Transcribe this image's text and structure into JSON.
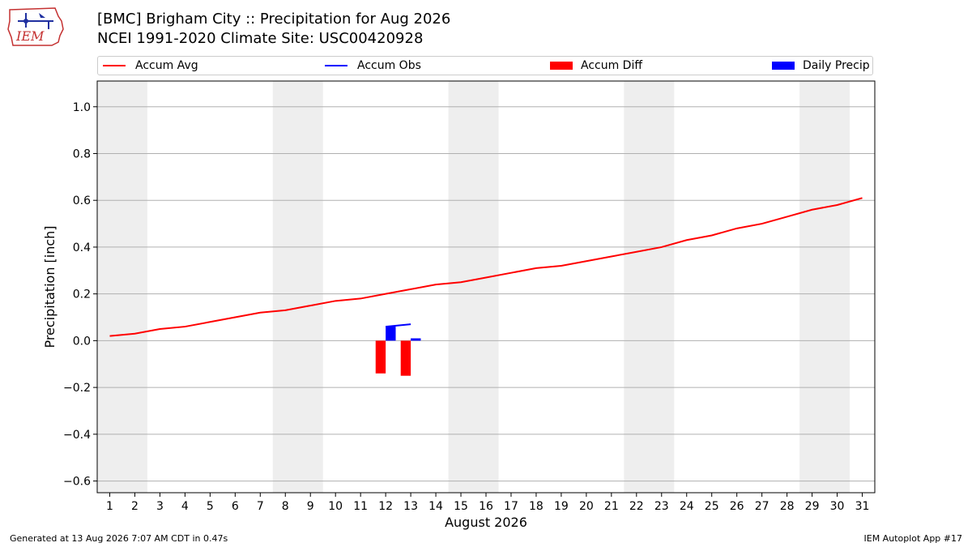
{
  "header": {
    "logo_text": "IEM",
    "title_line1": "[BMC] Brigham City :: Precipitation for Aug 2026",
    "title_line2": "NCEI 1991-2020 Climate Site: USC00420928"
  },
  "legend": {
    "placement": "top",
    "items": [
      {
        "label": "Accum Avg",
        "kind": "line",
        "color": "#ff0000"
      },
      {
        "label": "Accum Obs",
        "kind": "line",
        "color": "#0000ff"
      },
      {
        "label": "Accum Diff",
        "kind": "patch",
        "color": "#ff0000"
      },
      {
        "label": "Daily Precip",
        "kind": "patch",
        "color": "#0000ff"
      }
    ]
  },
  "footer": {
    "left": "Generated at 13 Aug 2026 7:07 AM CDT in 0.47s",
    "right": "IEM Autoplot App #17"
  },
  "chart_data": {
    "type": "bar",
    "title": "[BMC] Brigham City :: Precipitation for Aug 2026",
    "subtitle": "NCEI 1991-2020 Climate Site: USC00420928",
    "xlabel": "August 2026",
    "ylabel": "Precipitation [inch]",
    "xlim": [
      0.5,
      31.5
    ],
    "ylim": [
      -0.65,
      1.11
    ],
    "x_ticks": [
      1,
      2,
      3,
      4,
      5,
      6,
      7,
      8,
      9,
      10,
      11,
      12,
      13,
      14,
      15,
      16,
      17,
      18,
      19,
      20,
      21,
      22,
      23,
      24,
      25,
      26,
      27,
      28,
      29,
      30,
      31
    ],
    "y_ticks": [
      -0.6,
      -0.4,
      -0.2,
      0.0,
      0.2,
      0.4,
      0.6,
      0.8,
      1.0
    ],
    "grid": "horizontal",
    "weekend_bands": [
      [
        1,
        2
      ],
      [
        8,
        9
      ],
      [
        15,
        16
      ],
      [
        22,
        23
      ],
      [
        29,
        30
      ]
    ],
    "series": [
      {
        "name": "Accum Avg",
        "type": "line",
        "color": "#ff0000",
        "x": [
          1,
          2,
          3,
          4,
          5,
          6,
          7,
          8,
          9,
          10,
          11,
          12,
          13,
          14,
          15,
          16,
          17,
          18,
          19,
          20,
          21,
          22,
          23,
          24,
          25,
          26,
          27,
          28,
          29,
          30,
          31
        ],
        "values": [
          0.02,
          0.03,
          0.05,
          0.06,
          0.08,
          0.1,
          0.12,
          0.13,
          0.15,
          0.17,
          0.18,
          0.2,
          0.22,
          0.24,
          0.25,
          0.27,
          0.29,
          0.31,
          0.32,
          0.34,
          0.36,
          0.38,
          0.4,
          0.43,
          0.45,
          0.48,
          0.5,
          0.53,
          0.56,
          0.58,
          0.61
        ]
      },
      {
        "name": "Accum Obs",
        "type": "line",
        "color": "#0000ff",
        "x": [
          12,
          13
        ],
        "values": [
          0.06,
          0.07
        ]
      },
      {
        "name": "Accum Diff",
        "type": "bar",
        "color": "#ff0000",
        "x": [
          11.8,
          12.8
        ],
        "values": [
          -0.14,
          -0.15
        ]
      },
      {
        "name": "Daily Precip",
        "type": "bar",
        "color": "#0000ff",
        "x": [
          12.2,
          13.2
        ],
        "values": [
          0.06,
          0.01
        ]
      }
    ]
  }
}
